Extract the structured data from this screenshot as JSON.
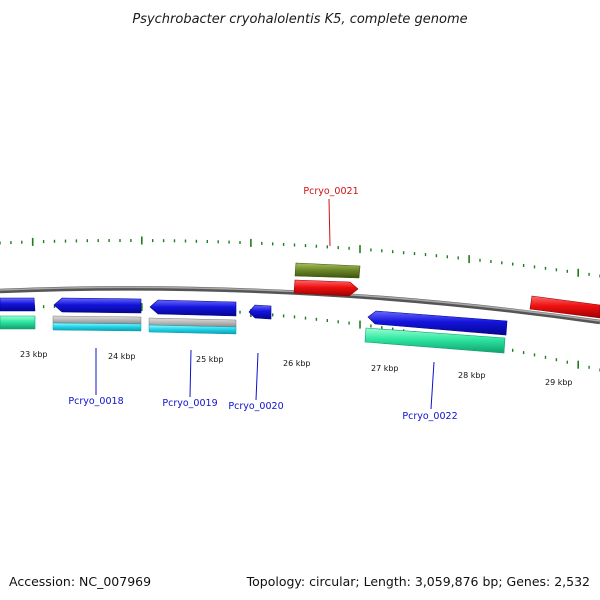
{
  "title": "Psychrobacter cryohalolentis K5, complete genome",
  "footer": {
    "accession": "Accession: NC_007969",
    "summary": "Topology: circular; Length: 3,059,876 bp; Genes: 2,532"
  },
  "kbp_labels": [
    "23 kbp",
    "24 kbp",
    "25 kbp",
    "26 kbp",
    "27 kbp",
    "28 kbp",
    "29 kbp"
  ],
  "gene_labels": [
    {
      "name": "Pcryo_0018",
      "color": "#1010cc"
    },
    {
      "name": "Pcryo_0019",
      "color": "#1010cc"
    },
    {
      "name": "Pcryo_0020",
      "color": "#1010cc"
    },
    {
      "name": "Pcryo_0021",
      "color": "#d01010"
    },
    {
      "name": "Pcryo_0022",
      "color": "#1010cc"
    }
  ],
  "colors": {
    "backbone": "#777777",
    "tick": "#1e7d1e",
    "forward_cds": "#ee1111",
    "reverse_cds": "#1414dd",
    "forward_feature": "#6f8a2a",
    "reverse_feature": "#2ee6a0",
    "reverse_feature_alt": "#22d8e8",
    "pseudo": "#b8b8b8"
  }
}
